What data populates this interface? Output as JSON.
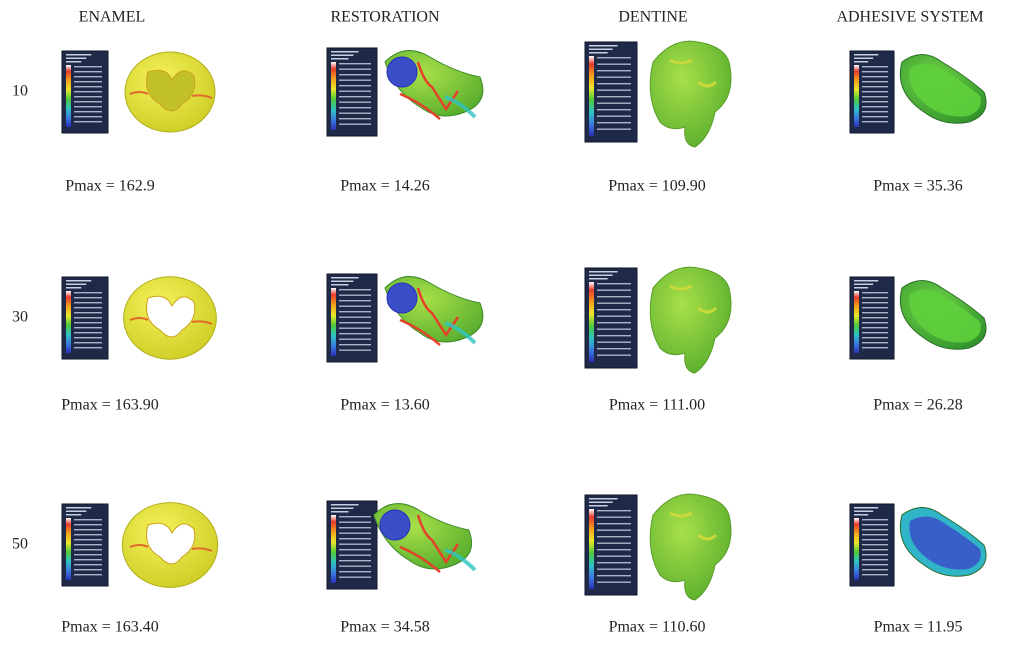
{
  "columns": [
    "ENAMEL",
    "RESTORATION",
    "DENTINE",
    "ADHESIVE SYSTEM"
  ],
  "rows": [
    {
      "label": "10",
      "captions": [
        "Pmax = 162.9",
        "Pmax = 14.26",
        "Pmax = 109.90",
        "Pmax = 35.36"
      ]
    },
    {
      "label": "30",
      "captions": [
        "Pmax = 163.90",
        "Pmax = 13.60",
        "Pmax = 111.00",
        "Pmax = 26.28"
      ]
    },
    {
      "label": "50",
      "captions": [
        "Pmax = 163.40",
        "Pmax = 34.58",
        "Pmax = 110.60",
        "Pmax = 11.95"
      ]
    }
  ]
}
